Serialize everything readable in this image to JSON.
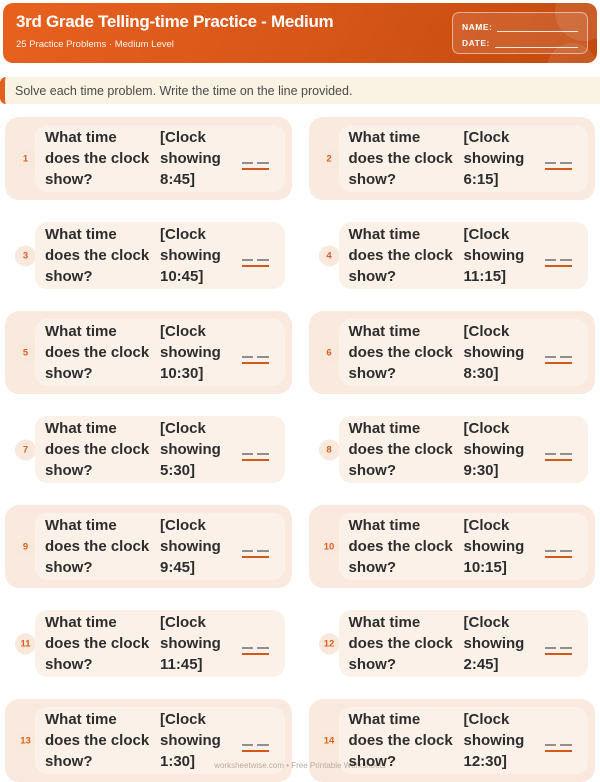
{
  "header": {
    "title": "3rd Grade Telling-time Practice - Medium",
    "subtitle": "25 Practice Problems · Medium Level",
    "name_label": "NAME:",
    "date_label": "DATE:"
  },
  "instruction": {
    "text": "Solve each time problem. Write the time on the line provided."
  },
  "problems": {
    "question": "What time does the clock show?",
    "items": [
      {
        "number": "1",
        "clock": "[Clock showing 8:45]",
        "time": "8:45"
      },
      {
        "number": "2",
        "clock": "[Clock showing 6:15]",
        "time": "6:15"
      },
      {
        "number": "3",
        "clock": "[Clock showing 10:45]",
        "time": "10:45"
      },
      {
        "number": "4",
        "clock": "[Clock showing 11:15]",
        "time": "11:15"
      },
      {
        "number": "5",
        "clock": "[Clock showing 10:30]",
        "time": "10:30"
      },
      {
        "number": "6",
        "clock": "[Clock showing 8:30]",
        "time": "8:30"
      },
      {
        "number": "7",
        "clock": "[Clock showing 5:30]",
        "time": "5:30"
      },
      {
        "number": "8",
        "clock": "[Clock showing 9:30]",
        "time": "9:30"
      },
      {
        "number": "9",
        "clock": "[Clock showing 9:45]",
        "time": "9:45"
      },
      {
        "number": "10",
        "clock": "[Clock showing 10:15]",
        "time": "10:15"
      },
      {
        "number": "11",
        "clock": "[Clock showing 11:45]",
        "time": "11:45"
      },
      {
        "number": "12",
        "clock": "[Clock showing 2:45]",
        "time": "2:45"
      },
      {
        "number": "13",
        "clock": "[Clock showing 1:30]",
        "time": "1:30"
      },
      {
        "number": "14",
        "clock": "[Clock showing 12:30]",
        "time": "12:30"
      }
    ]
  },
  "watermark": {
    "text": "worksheetwise.com • Free Printable Worksheets"
  },
  "colors": {
    "accent": "#E2601C",
    "header_top": "#E8611F",
    "header_bottom": "#C24A0F",
    "row_highlight": "#F9E9DF",
    "card_bg": "#FCF1E8",
    "badge_bg": "#F8E9DC",
    "number_color": "#DD5F1E",
    "text_dark": "#2D2D2D",
    "instruction_bg": "#FAF2E3",
    "instruction_text": "#4A4A4A",
    "answer_gray": "#8F8F8F",
    "answer_orange": "#D2591A",
    "watermark_color": "#BCAB9E"
  }
}
